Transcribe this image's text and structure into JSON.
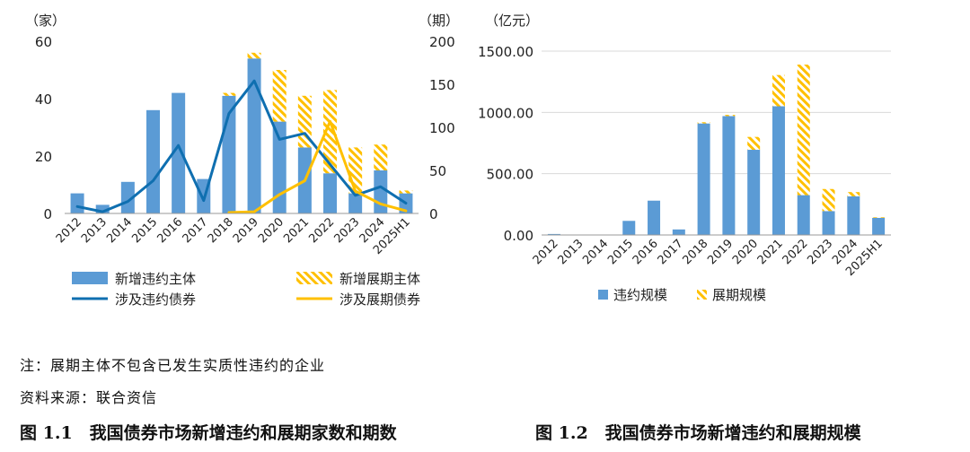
{
  "chart_data": [
    {
      "type": "bar+line",
      "categories": [
        "2012",
        "2013",
        "2014",
        "2015",
        "2016",
        "2017",
        "2018",
        "2019",
        "2020",
        "2021",
        "2022",
        "2023",
        "2024",
        "2025H1"
      ],
      "left_unit": "（家）",
      "right_unit": "（期）",
      "left_ticks": [
        "60",
        "40",
        "20",
        "0"
      ],
      "right_ticks": [
        "200",
        "150",
        "100",
        "50",
        "0"
      ],
      "ylim_left": [
        0,
        60
      ],
      "ylim_right": [
        0,
        200
      ],
      "bars_stacked": [
        {
          "name": "新增违约主体",
          "color": "#5B9BD5",
          "values": [
            7,
            3,
            11,
            36,
            42,
            12,
            41,
            54,
            32,
            23,
            14,
            7,
            15,
            7
          ]
        },
        {
          "name": "新增展期主体",
          "color": "#FFC000",
          "pattern": "hatch",
          "values": [
            0,
            0,
            0,
            0,
            0,
            0,
            1,
            2,
            18,
            18,
            29,
            16,
            9,
            1
          ]
        }
      ],
      "lines": [
        {
          "name": "涉及违约债券",
          "color": "#0F6FB0",
          "axis": "right",
          "values": [
            8,
            2,
            14,
            38,
            79,
            15,
            116,
            154,
            86,
            93,
            57,
            21,
            31,
            12
          ]
        },
        {
          "name": "涉及展期债券",
          "color": "#FFC000",
          "axis": "right",
          "values": [
            null,
            null,
            null,
            null,
            null,
            null,
            1,
            2,
            22,
            38,
            107,
            26,
            11,
            3
          ]
        }
      ],
      "legend": [
        "新增违约主体",
        "新增展期主体",
        "涉及违约债券",
        "涉及展期债券"
      ]
    },
    {
      "type": "stacked-bar",
      "categories": [
        "2012",
        "2013",
        "2014",
        "2015",
        "2016",
        "2017",
        "2018",
        "2019",
        "2020",
        "2021",
        "2022",
        "2023",
        "2024",
        "2025H1"
      ],
      "unit": "（亿元）",
      "ticks": [
        "1500.00",
        "1000.00",
        "500.00",
        "0.00"
      ],
      "ylim": [
        0,
        1500
      ],
      "grid": true,
      "series": [
        {
          "name": "违约规模",
          "color": "#5B9BD5",
          "values": [
            8,
            0,
            0,
            115,
            280,
            45,
            910,
            970,
            695,
            1050,
            325,
            195,
            315,
            140
          ]
        },
        {
          "name": "展期规模",
          "color": "#FFC000",
          "pattern": "hatch",
          "values": [
            0,
            0,
            0,
            0,
            0,
            0,
            10,
            10,
            105,
            255,
            1065,
            180,
            35,
            5
          ]
        }
      ],
      "legend": [
        "违约规模",
        "展期规模"
      ]
    }
  ],
  "notes": {
    "note1": "注：展期主体不包含已发生实质性违约的企业",
    "source": "资料来源：联合资信"
  },
  "captions": {
    "fig1": "图 1.1　我国债券市场新增违约和展期家数和期数",
    "fig2": "图 1.2　我国债券市场新增违约和展期规模"
  }
}
